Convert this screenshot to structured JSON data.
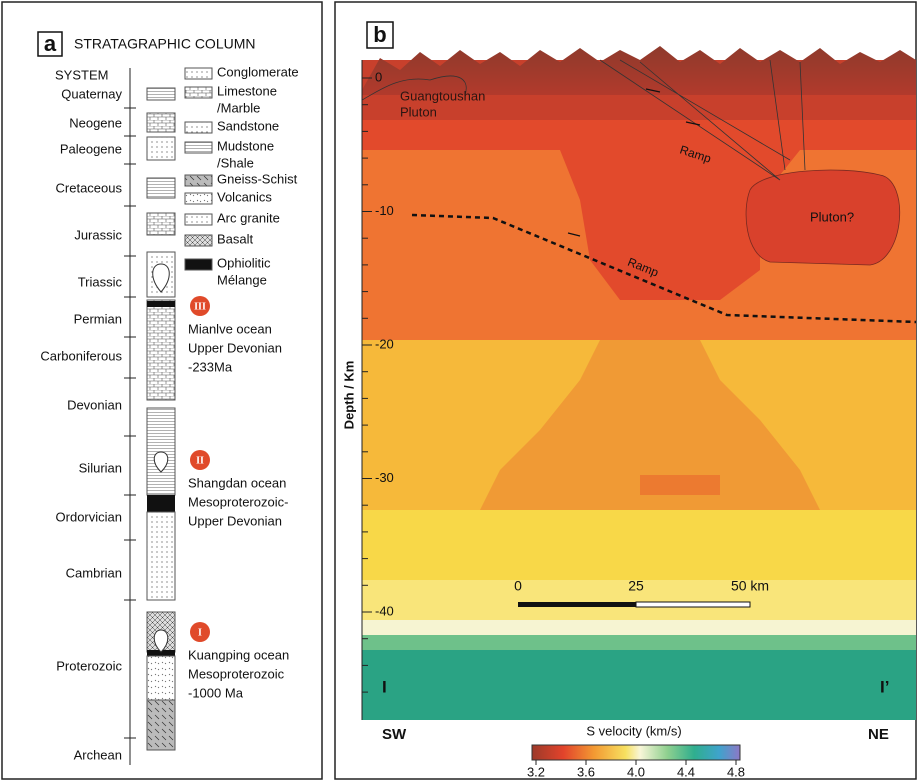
{
  "panel_a": {
    "label": "a",
    "title": "STRATAGRAPHIC COLUMN",
    "header": "SYSTEM",
    "systems": [
      "Quaternay",
      "Neogene",
      "Paleogene",
      "Cretaceous",
      "Jurassic",
      "Triassic",
      "Permian",
      "Carboniferous",
      "Devonian",
      "Silurian",
      "Ordorvician",
      "Cambrian",
      "Proterozoic",
      "Archean"
    ],
    "legend": [
      [
        "Conglomerate"
      ],
      [
        "Limestone",
        "/Marble"
      ],
      [
        "Sandstone"
      ],
      [
        "Mudstone",
        "/Shale"
      ],
      [
        "Gneiss-Schist"
      ],
      [
        "Volcanics"
      ],
      [
        "Arc granite"
      ],
      [
        "Basalt"
      ],
      [
        "Ophiolitic",
        "Mélange"
      ]
    ],
    "oceans": [
      {
        "numeral": "III",
        "lines": [
          "Mianlve ocean",
          "Upper Devonian",
          "-233Ma"
        ]
      },
      {
        "numeral": "II",
        "lines": [
          "Shangdan ocean",
          "Mesoproterozoic-",
          "Upper Devonian"
        ]
      },
      {
        "numeral": "I",
        "lines": [
          "Kuangping ocean",
          "Mesoproterozoic",
          "-1000 Ma"
        ]
      }
    ]
  },
  "panel_b": {
    "label": "b",
    "axis_title": "Depth / Km",
    "depth_ticks": [
      "0",
      "-10",
      "-20",
      "-30",
      "-40"
    ],
    "pluton_label": [
      "Guangtoushan",
      "Pluton"
    ],
    "ramp_labels": [
      "Ramp",
      "Ramp"
    ],
    "pluton_query": "Pluton?",
    "scale_bar": [
      "0",
      "25",
      "50 km"
    ],
    "section_ends": [
      "I",
      "I’"
    ],
    "directions": [
      "SW",
      "NE"
    ],
    "colorbar_title": "S velocity (km/s)",
    "colorbar_ticks": [
      "3.2",
      "3.6",
      "4.0",
      "4.4",
      "4.8"
    ]
  }
}
